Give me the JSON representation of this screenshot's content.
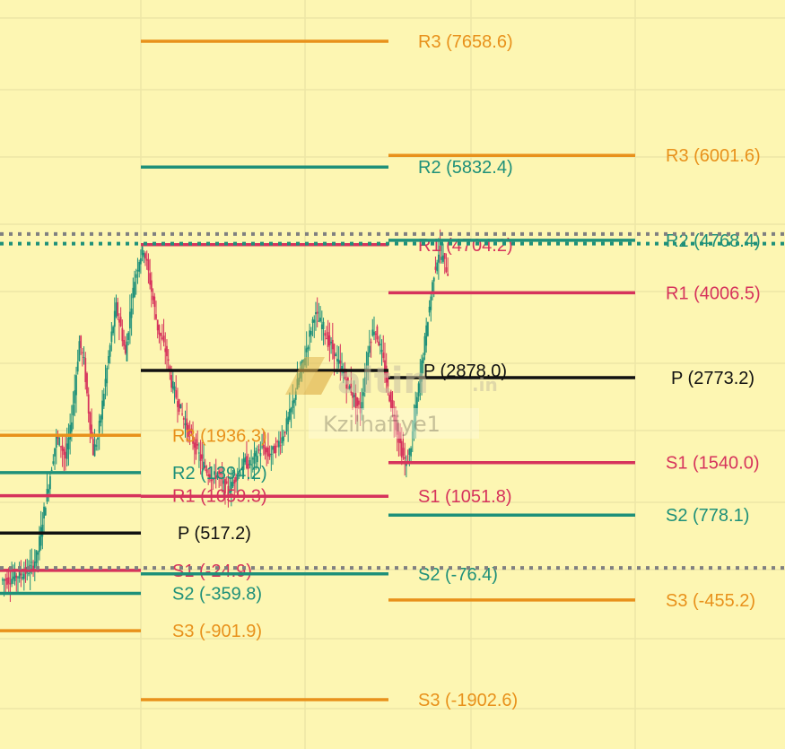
{
  "chart_data": {
    "type": "line",
    "subtype": "candlestick-with-pivot-levels",
    "title": "",
    "xlabel": "",
    "ylabel": "",
    "grid": true,
    "legend": "none",
    "colors": {
      "background": "#fdf6b2",
      "grid": "#ede6a6",
      "pivot": "#111111",
      "r1_s1": "#d6335c",
      "r2_s2": "#1e9079",
      "r3_s3": "#e8911b",
      "candle_up": "#1e9079",
      "candle_down": "#d6335c",
      "dotted_gray": "#808080",
      "dotted_teal": "#1e9079"
    },
    "periods": [
      {
        "id": "period-1",
        "levels": [
          {
            "key": "R3",
            "label": "R3 (1936.3)",
            "value": 1936.3,
            "color": "#e8911b"
          },
          {
            "key": "R2",
            "label": "R2 (1394.2)",
            "value": 1394.2,
            "color": "#1e9079"
          },
          {
            "key": "R1",
            "label": "R1 (1059.3)",
            "value": 1059.3,
            "color": "#d6335c"
          },
          {
            "key": "P",
            "label": "P (517.2)",
            "value": 517.2,
            "color": "#111111"
          },
          {
            "key": "S1",
            "label": "S1 (-24.9)",
            "value": -24.9,
            "color": "#d6335c"
          },
          {
            "key": "S2",
            "label": "S2 (-359.8)",
            "value": -359.8,
            "color": "#1e9079"
          },
          {
            "key": "S3",
            "label": "S3 (-901.9)",
            "value": -901.9,
            "color": "#e8911b"
          }
        ]
      },
      {
        "id": "period-2",
        "levels": [
          {
            "key": "R3",
            "label": "R3 (7658.6)",
            "value": 7658.6,
            "color": "#e8911b"
          },
          {
            "key": "R2",
            "label": "R2 (5832.4)",
            "value": 5832.4,
            "color": "#1e9079"
          },
          {
            "key": "R1",
            "label": "R1 (4704.2)",
            "value": 4704.2,
            "color": "#d6335c"
          },
          {
            "key": "P",
            "label": "P (2878.0)",
            "value": 2878.0,
            "color": "#111111"
          },
          {
            "key": "S1",
            "label": "S1 (1051.8)",
            "value": 1051.8,
            "color": "#d6335c"
          },
          {
            "key": "S2",
            "label": "S2 (-76.4)",
            "value": -76.4,
            "color": "#1e9079"
          },
          {
            "key": "S3",
            "label": "S3 (-1902.6)",
            "value": -1902.6,
            "color": "#e8911b"
          }
        ]
      },
      {
        "id": "period-3",
        "levels": [
          {
            "key": "R3",
            "label": "R3 (6001.6)",
            "value": 6001.6,
            "color": "#e8911b"
          },
          {
            "key": "R2",
            "label": "R2 (4768.4)",
            "value": 4768.4,
            "color": "#1e9079"
          },
          {
            "key": "R1",
            "label": "R1 (4006.5)",
            "value": 4006.5,
            "color": "#d6335c"
          },
          {
            "key": "P",
            "label": "P (2773.2)",
            "value": 2773.2,
            "color": "#111111"
          },
          {
            "key": "S1",
            "label": "S1 (1540.0)",
            "value": 1540.0,
            "color": "#d6335c"
          },
          {
            "key": "S2",
            "label": "S2 (778.1)",
            "value": 778.1,
            "color": "#1e9079"
          },
          {
            "key": "S3",
            "label": "S3 (-455.2)",
            "value": -455.2,
            "color": "#e8911b"
          }
        ]
      }
    ],
    "reference_lines": [
      {
        "name": "dotted-high-gray",
        "value": 4860,
        "style": "dotted",
        "color": "#808080"
      },
      {
        "name": "dotted-high-teal",
        "value": 4720,
        "style": "dotted",
        "color": "#1e9079"
      },
      {
        "name": "dotted-low-gray",
        "value": 10,
        "style": "dotted",
        "color": "#808080"
      }
    ],
    "price_series": [
      {
        "name": "",
        "close": [
          -170,
          -160,
          -150,
          -110,
          -90,
          -60,
          -20,
          60,
          250,
          700,
          1100,
          1500,
          1900,
          1800,
          1600,
          2000,
          2600,
          3300,
          3000,
          2300,
          1700,
          1900,
          2400,
          2900,
          3400,
          3800,
          3500,
          3100,
          3700,
          4200,
          4500,
          4650,
          4300,
          3900,
          3500,
          3300,
          3100,
          2700,
          2500,
          2300,
          2100,
          1950,
          1800,
          1650,
          1500,
          1400,
          1300,
          1400,
          1250,
          1150,
          1200,
          1350,
          1450,
          1550,
          1500,
          1600,
          1700,
          1750,
          1650,
          1700,
          1800,
          1900,
          2100,
          2300,
          2600,
          2850,
          3100,
          3400,
          3700,
          3600,
          3500,
          3300,
          3200,
          3000,
          2900,
          2700,
          2600,
          2400,
          2300,
          2800,
          3300,
          3500,
          3300,
          3000,
          2600,
          2300,
          2000,
          1700,
          1500,
          1800,
          2300,
          2800,
          3300,
          3800,
          4300,
          4600,
          4500,
          4300
        ]
      }
    ]
  },
  "watermark": {
    "brand": "altin",
    "suffix": ".in",
    "caption": "Kzilhafiye1"
  }
}
